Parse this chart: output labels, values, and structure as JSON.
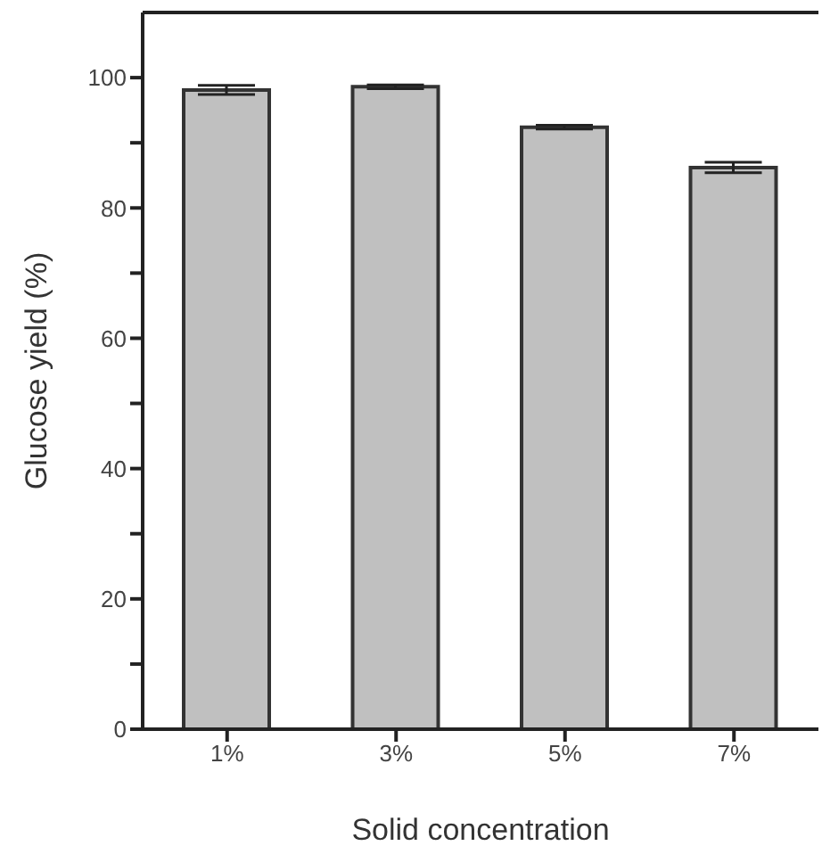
{
  "chart_data": {
    "type": "bar",
    "xlabel": "Solid concentration",
    "ylabel": "Glucose yield (%)",
    "categories": [
      "1%",
      "3%",
      "5%",
      "7%"
    ],
    "values": [
      98.1,
      98.6,
      92.4,
      86.2
    ],
    "errors": [
      0.7,
      0.3,
      0.3,
      0.8
    ],
    "color": "#c0c0c0",
    "ylim": [
      0,
      110
    ],
    "yticks": [
      0,
      {
        "value": 10,
        "label": null
      },
      20,
      {
        "value": 30,
        "label": null
      },
      40,
      {
        "value": 50,
        "label": null
      },
      60,
      {
        "value": 70,
        "label": null
      },
      80,
      {
        "value": 90,
        "label": null
      },
      100
    ],
    "grid": false
  }
}
